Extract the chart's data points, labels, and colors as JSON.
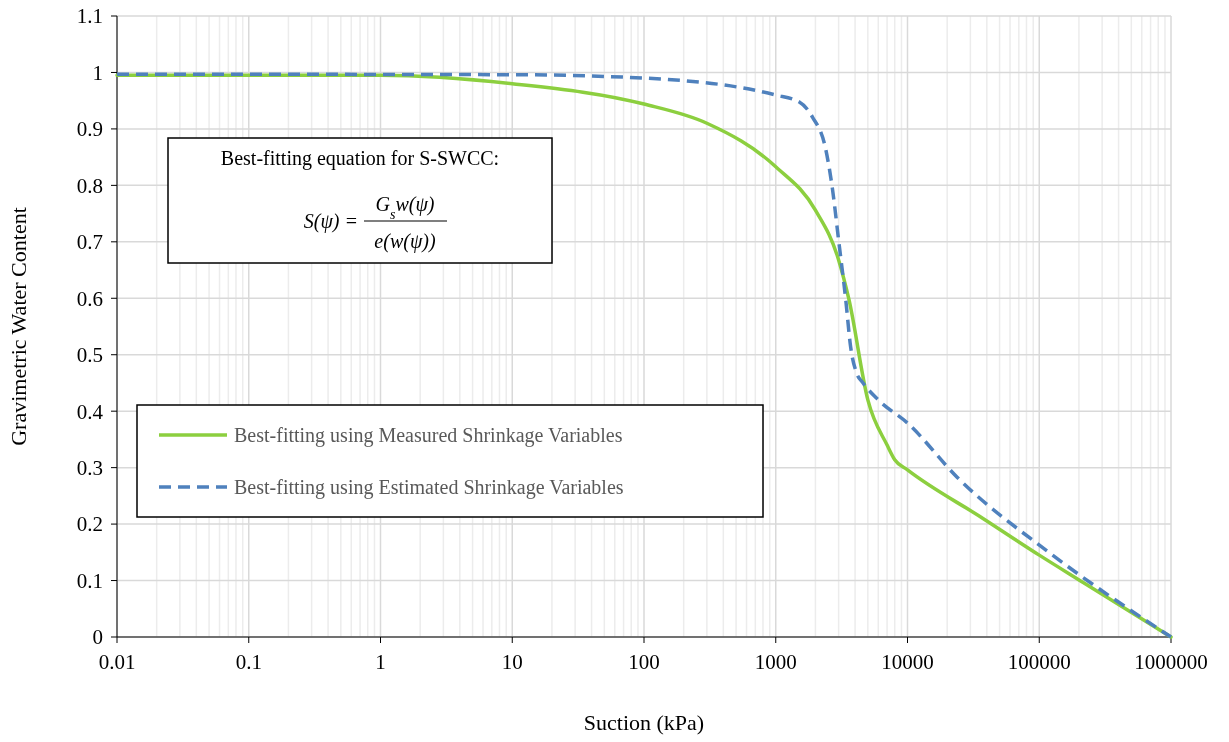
{
  "chart_data": {
    "type": "line",
    "xlabel": "Suction (kPa)",
    "ylabel": "Gravimetric Water Content",
    "log": "x",
    "grid": true,
    "legend": "bottom left",
    "xlim": [
      0.01,
      1000000
    ],
    "xticks": [
      0.01,
      0.1,
      1,
      10,
      100,
      1000,
      10000,
      100000,
      1000000
    ],
    "ylim": [
      0,
      1.1
    ],
    "yticks": [
      0,
      0.1,
      0.2,
      0.3,
      0.4,
      0.5,
      0.6,
      0.7,
      0.8,
      0.9,
      1,
      1.1
    ],
    "annotations": [
      "Best-fitting equation for S-SWCC:",
      "S(ψ) =",
      "G$_{s}$w(ψ)",
      "e(w(ψ))"
    ],
    "series": [
      {
        "name": "Best-fitting using Measured Shrinkage Variables",
        "color": "#8ccf3f",
        "line_style": "solid",
        "x": [
          0.01,
          1,
          10,
          100,
          300,
          1000,
          2000,
          3000,
          3600,
          5000,
          7000,
          8000,
          10000,
          37400,
          100000,
          214000,
          1000000
        ],
        "values": [
          0.995,
          0.995,
          0.98,
          0.944,
          0.91,
          0.833,
          0.756,
          0.668,
          0.597,
          0.42,
          0.34,
          0.314,
          0.296,
          0.21,
          0.145,
          0.097,
          0
        ]
      },
      {
        "name": "Best-fitting using Estimated Shrinkage Variables",
        "color": "#4f81bd",
        "line_style": "dashed",
        "x": [
          0.01,
          10,
          100,
          1000,
          1500,
          1900,
          2400,
          2700,
          3000,
          3400,
          3700,
          4100,
          4600,
          6000,
          10000,
          23800,
          120000,
          1000000
        ],
        "values": [
          0.997,
          0.996,
          0.99,
          0.96,
          0.948,
          0.921,
          0.863,
          0.792,
          0.703,
          0.597,
          0.514,
          0.468,
          0.45,
          0.42,
          0.379,
          0.283,
          0.149,
          0
        ]
      }
    ]
  }
}
